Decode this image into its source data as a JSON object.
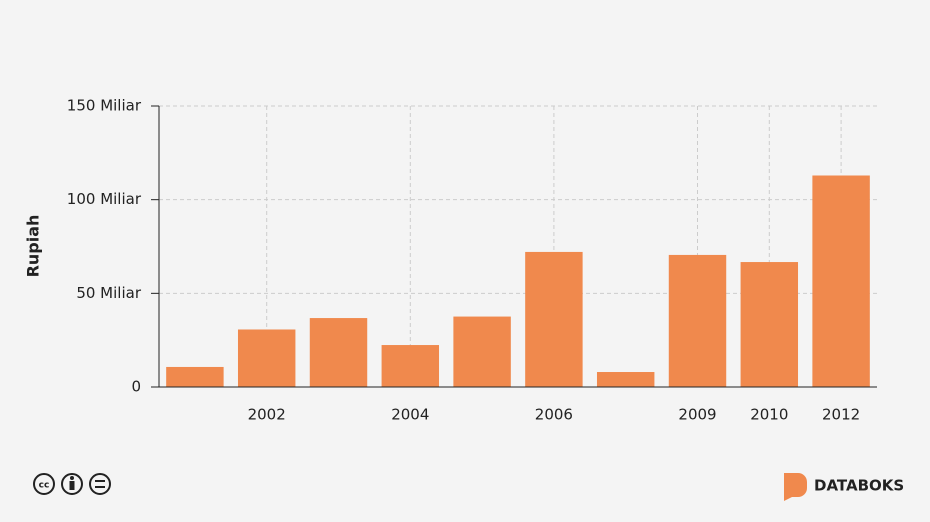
{
  "chart_data": {
    "type": "bar",
    "y_label": "Rupiah",
    "categories": [
      null,
      "2002",
      null,
      "2004",
      null,
      "2006",
      null,
      "2009",
      "2010",
      "2012"
    ],
    "values": [
      10.7,
      30.7,
      36.8,
      22.4,
      37.6,
      72.1,
      8.0,
      70.5,
      66.7,
      112.9
    ],
    "color": "#f0894d",
    "ylim": [
      0,
      150
    ],
    "yticks": [
      0,
      {
        "value": 50,
        "label": "50 Miliar"
      },
      {
        "value": 100,
        "label": "100 Miliar"
      },
      {
        "value": 150,
        "label": "150 Miliar"
      }
    ],
    "grid": true
  },
  "footer": {
    "brand": "DATABOKS"
  }
}
